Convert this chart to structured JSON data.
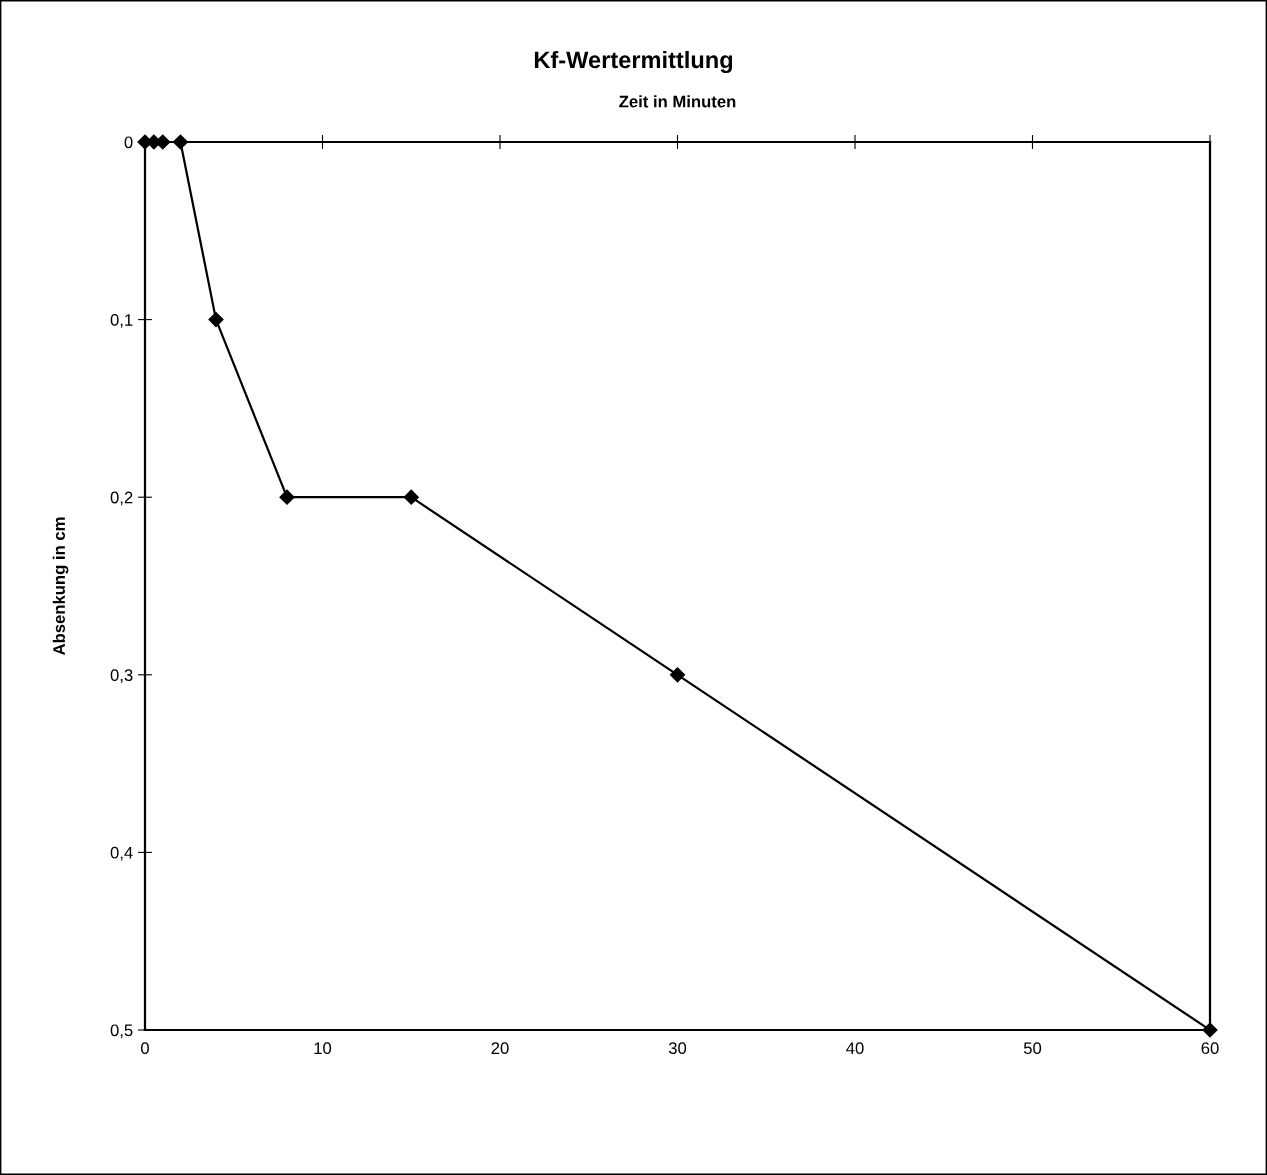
{
  "chart_data": {
    "type": "line",
    "title": "Kf-Wertermittlung",
    "xlabel": "Zeit in Minuten",
    "ylabel": "Absenkung in cm",
    "x": [
      0,
      0.5,
      1,
      2,
      4,
      8,
      15,
      30,
      60
    ],
    "series": [
      {
        "color": "#000000",
        "values": [
          0,
          0,
          0,
          0,
          0.1,
          0.2,
          0.2,
          0.3,
          0.5
        ]
      }
    ],
    "xlim": [
      0,
      60
    ],
    "xticks": [
      0,
      10,
      20,
      30,
      40,
      50,
      60
    ],
    "ylim": [
      0.5,
      0
    ],
    "yticks": [
      {
        "value": 0,
        "label": "0"
      },
      {
        "value": 0.1,
        "label": "0,1"
      },
      {
        "value": 0.2,
        "label": "0,2"
      },
      {
        "value": 0.3,
        "label": "0,3"
      },
      {
        "value": 0.4,
        "label": "0,4"
      },
      {
        "value": 0.5,
        "label": "0,5"
      }
    ],
    "marker": "diamond",
    "line_style": "solid",
    "grid": false,
    "legend": false
  }
}
